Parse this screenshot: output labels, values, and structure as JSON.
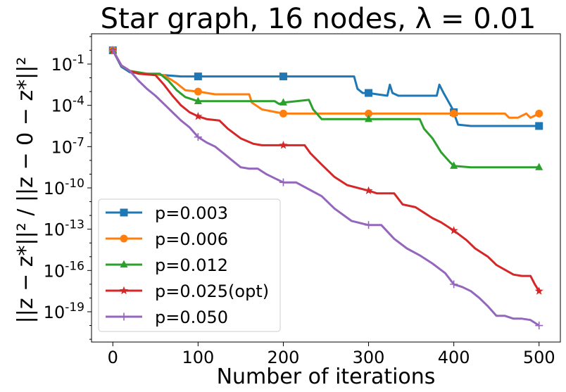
{
  "chart_data": {
    "type": "line",
    "title": "Star graph, 16 nodes, λ = 0.01",
    "xlabel": "Number of iterations",
    "ylabel": "||z − z*||² / ||z − 0 − z*||²",
    "yscale": "log",
    "xlim": [
      -25,
      525
    ],
    "ylim_log10": [
      -21.2,
      1.2
    ],
    "xticks": [
      0,
      100,
      200,
      300,
      400,
      500
    ],
    "yticks": [
      {
        "exp": -1,
        "label": "10^-1"
      },
      {
        "exp": -4,
        "label": "10^-4"
      },
      {
        "exp": -7,
        "label": "10^-7"
      },
      {
        "exp": -10,
        "label": "10^-10"
      },
      {
        "exp": -13,
        "label": "10^-13"
      },
      {
        "exp": -16,
        "label": "10^-16"
      },
      {
        "exp": -19,
        "label": "10^-19"
      }
    ],
    "legend_position": "lower-left",
    "series": [
      {
        "name": "p=0.003",
        "color": "#1f77b4",
        "marker": "square",
        "points": [
          [
            0,
            0
          ],
          [
            10,
            -1.2
          ],
          [
            20,
            -1.6
          ],
          [
            40,
            -1.7
          ],
          [
            60,
            -1.8
          ],
          [
            80,
            -1.9
          ],
          [
            100,
            -1.9
          ],
          [
            150,
            -1.9
          ],
          [
            200,
            -1.9
          ],
          [
            250,
            -1.9
          ],
          [
            283,
            -1.9
          ],
          [
            287,
            -2.8
          ],
          [
            293,
            -3.1
          ],
          [
            300,
            -3.1
          ],
          [
            310,
            -3.2
          ],
          [
            322,
            -3.3
          ],
          [
            325,
            -2.5
          ],
          [
            328,
            -3.1
          ],
          [
            335,
            -3.3
          ],
          [
            380,
            -3.3
          ],
          [
            383,
            -2.5
          ],
          [
            388,
            -3.1
          ],
          [
            398,
            -4.2
          ],
          [
            405,
            -5.4
          ],
          [
            420,
            -5.5
          ],
          [
            500,
            -5.5
          ]
        ],
        "markers": [
          [
            0,
            0
          ],
          [
            100,
            -1.9
          ],
          [
            200,
            -1.9
          ],
          [
            300,
            -3.1
          ],
          [
            400,
            -4.5
          ],
          [
            500,
            -5.5
          ]
        ]
      },
      {
        "name": "p=0.006",
        "color": "#ff7f0e",
        "marker": "circle",
        "points": [
          [
            0,
            0
          ],
          [
            10,
            -1.1
          ],
          [
            20,
            -1.5
          ],
          [
            40,
            -1.7
          ],
          [
            60,
            -1.8
          ],
          [
            75,
            -2.4
          ],
          [
            85,
            -2.9
          ],
          [
            100,
            -3.0
          ],
          [
            120,
            -3.2
          ],
          [
            160,
            -3.2
          ],
          [
            163,
            -3.8
          ],
          [
            175,
            -4.3
          ],
          [
            200,
            -4.6
          ],
          [
            250,
            -4.6
          ],
          [
            300,
            -4.6
          ],
          [
            350,
            -4.6
          ],
          [
            400,
            -4.6
          ],
          [
            460,
            -4.6
          ],
          [
            465,
            -4.9
          ],
          [
            475,
            -4.9
          ],
          [
            485,
            -4.6
          ],
          [
            490,
            -4.9
          ],
          [
            500,
            -4.6
          ]
        ],
        "markers": [
          [
            0,
            0
          ],
          [
            100,
            -3.0
          ],
          [
            200,
            -4.6
          ],
          [
            300,
            -4.6
          ],
          [
            400,
            -4.6
          ],
          [
            500,
            -4.6
          ]
        ]
      },
      {
        "name": "p=0.012",
        "color": "#2ca02c",
        "marker": "triangle",
        "points": [
          [
            0,
            0
          ],
          [
            10,
            -1.1
          ],
          [
            20,
            -1.5
          ],
          [
            40,
            -1.7
          ],
          [
            55,
            -1.7
          ],
          [
            65,
            -2.2
          ],
          [
            75,
            -2.9
          ],
          [
            85,
            -3.4
          ],
          [
            100,
            -3.7
          ],
          [
            150,
            -3.7
          ],
          [
            190,
            -3.7
          ],
          [
            195,
            -3.9
          ],
          [
            200,
            -3.8
          ],
          [
            230,
            -3.6
          ],
          [
            235,
            -4.3
          ],
          [
            245,
            -5.0
          ],
          [
            300,
            -5.0
          ],
          [
            360,
            -5.0
          ],
          [
            365,
            -5.7
          ],
          [
            375,
            -6.4
          ],
          [
            385,
            -7.4
          ],
          [
            395,
            -8.1
          ],
          [
            400,
            -8.4
          ],
          [
            420,
            -8.5
          ],
          [
            500,
            -8.5
          ]
        ],
        "markers": [
          [
            0,
            0
          ],
          [
            100,
            -3.7
          ],
          [
            200,
            -3.8
          ],
          [
            300,
            -5.0
          ],
          [
            400,
            -8.4
          ],
          [
            500,
            -8.5
          ]
        ]
      },
      {
        "name": "p=0.025(opt)",
        "color": "#d62728",
        "marker": "star",
        "points": [
          [
            0,
            0
          ],
          [
            10,
            -1.1
          ],
          [
            20,
            -1.5
          ],
          [
            30,
            -1.7
          ],
          [
            50,
            -1.8
          ],
          [
            60,
            -2.5
          ],
          [
            70,
            -3.3
          ],
          [
            80,
            -4.0
          ],
          [
            90,
            -4.5
          ],
          [
            100,
            -4.8
          ],
          [
            110,
            -5.0
          ],
          [
            125,
            -5.1
          ],
          [
            135,
            -5.7
          ],
          [
            150,
            -6.4
          ],
          [
            165,
            -6.8
          ],
          [
            175,
            -6.9
          ],
          [
            200,
            -6.9
          ],
          [
            225,
            -6.9
          ],
          [
            232,
            -7.5
          ],
          [
            245,
            -8.3
          ],
          [
            260,
            -9.2
          ],
          [
            275,
            -9.8
          ],
          [
            300,
            -10.2
          ],
          [
            310,
            -10.4
          ],
          [
            330,
            -10.4
          ],
          [
            340,
            -11.2
          ],
          [
            355,
            -11.4
          ],
          [
            365,
            -11.8
          ],
          [
            375,
            -12.2
          ],
          [
            385,
            -12.5
          ],
          [
            395,
            -12.9
          ],
          [
            400,
            -13.1
          ],
          [
            415,
            -13.8
          ],
          [
            425,
            -14.4
          ],
          [
            440,
            -15.0
          ],
          [
            450,
            -15.6
          ],
          [
            470,
            -16.3
          ],
          [
            480,
            -16.4
          ],
          [
            490,
            -16.4
          ],
          [
            495,
            -17.0
          ],
          [
            500,
            -17.5
          ]
        ],
        "markers": [
          [
            0,
            0
          ],
          [
            100,
            -4.8
          ],
          [
            200,
            -6.9
          ],
          [
            300,
            -10.2
          ],
          [
            400,
            -13.1
          ],
          [
            500,
            -17.5
          ]
        ]
      },
      {
        "name": "p=0.050",
        "color": "#9467bd",
        "marker": "plus",
        "points": [
          [
            0,
            0
          ],
          [
            10,
            -1.1
          ],
          [
            20,
            -1.5
          ],
          [
            30,
            -2.2
          ],
          [
            40,
            -2.8
          ],
          [
            50,
            -3.3
          ],
          [
            60,
            -3.9
          ],
          [
            70,
            -4.5
          ],
          [
            80,
            -5.1
          ],
          [
            90,
            -5.6
          ],
          [
            100,
            -6.3
          ],
          [
            110,
            -6.7
          ],
          [
            120,
            -7.0
          ],
          [
            130,
            -7.5
          ],
          [
            140,
            -8.0
          ],
          [
            150,
            -8.5
          ],
          [
            160,
            -8.6
          ],
          [
            170,
            -8.6
          ],
          [
            180,
            -9.0
          ],
          [
            190,
            -9.3
          ],
          [
            200,
            -9.6
          ],
          [
            215,
            -9.6
          ],
          [
            230,
            -10.1
          ],
          [
            245,
            -10.6
          ],
          [
            260,
            -11.5
          ],
          [
            280,
            -12.4
          ],
          [
            300,
            -12.7
          ],
          [
            315,
            -12.7
          ],
          [
            330,
            -13.7
          ],
          [
            345,
            -14.4
          ],
          [
            360,
            -14.9
          ],
          [
            375,
            -15.5
          ],
          [
            390,
            -16.2
          ],
          [
            400,
            -17.0
          ],
          [
            410,
            -17.2
          ],
          [
            420,
            -17.5
          ],
          [
            430,
            -18.0
          ],
          [
            440,
            -18.6
          ],
          [
            450,
            -19.3
          ],
          [
            460,
            -19.3
          ],
          [
            470,
            -19.5
          ],
          [
            480,
            -19.5
          ],
          [
            490,
            -19.6
          ],
          [
            500,
            -20.0
          ],
          [
            450,
            -19.3
          ]
        ],
        "markers": [
          [
            0,
            0
          ],
          [
            100,
            -6.3
          ],
          [
            200,
            -9.6
          ],
          [
            300,
            -12.7
          ],
          [
            400,
            -17.0
          ],
          [
            500,
            -20.0
          ]
        ]
      }
    ]
  }
}
